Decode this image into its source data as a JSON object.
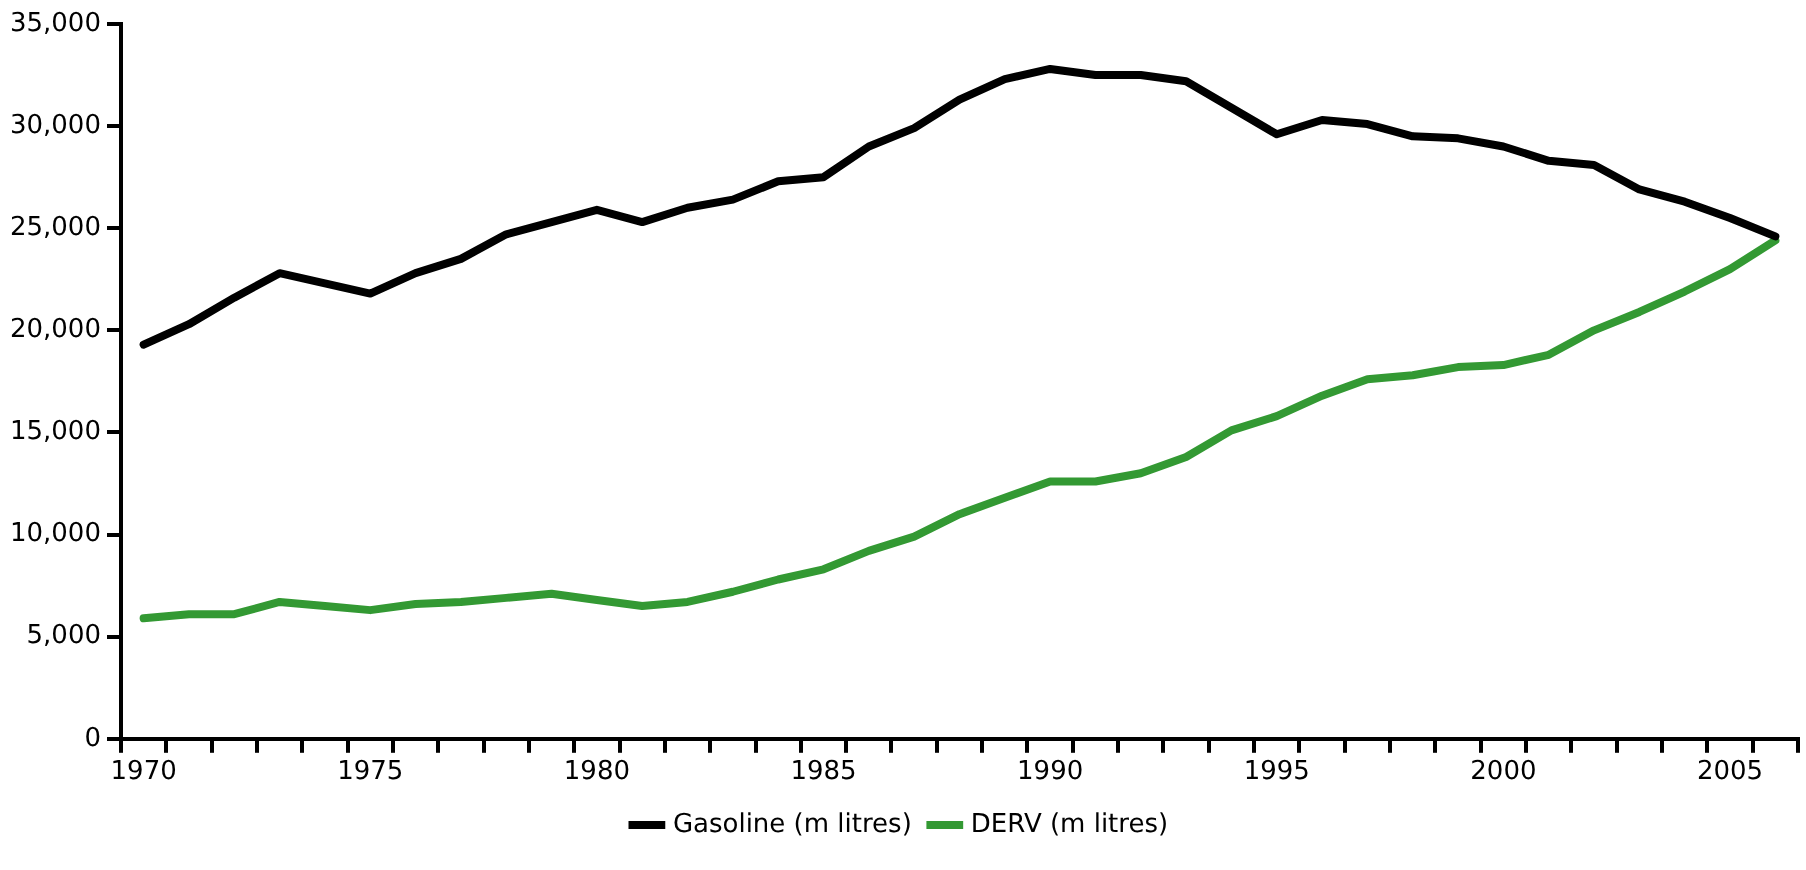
{
  "chart_data": {
    "type": "line",
    "categories": [
      "1970",
      null,
      null,
      null,
      null,
      "1975",
      null,
      null,
      null,
      null,
      "1980",
      null,
      null,
      null,
      null,
      "1985",
      null,
      null,
      null,
      null,
      "1990",
      null,
      null,
      null,
      null,
      "1995",
      null,
      null,
      null,
      null,
      "2000",
      null,
      null,
      null,
      null,
      "2005",
      null
    ],
    "series": [
      {
        "name": "Gasoline (m litres)",
        "color": "#000000",
        "values": [
          19300,
          20300,
          21600,
          22800,
          22300,
          21800,
          22800,
          23500,
          24700,
          25300,
          25900,
          25300,
          26000,
          26400,
          27300,
          27500,
          29000,
          29900,
          31300,
          32300,
          32800,
          32500,
          32500,
          32200,
          30900,
          29600,
          30300,
          30100,
          29500,
          29400,
          29000,
          28300,
          28100,
          26900,
          26300,
          25500,
          24600
        ]
      },
      {
        "name": "DERV (m litres)",
        "color": "#339933",
        "values": [
          5900,
          6100,
          6100,
          6700,
          6500,
          6300,
          6600,
          6700,
          6900,
          7100,
          6800,
          6500,
          6700,
          7200,
          7800,
          8300,
          9200,
          9900,
          11000,
          11800,
          12600,
          12600,
          13000,
          13800,
          15100,
          15800,
          16800,
          17600,
          17800,
          18200,
          18300,
          18800,
          20000,
          20900,
          21900,
          23000,
          24400
        ]
      }
    ],
    "ylim": [
      0,
      35000
    ],
    "yticks": [
      {
        "value": 0,
        "label": "0"
      },
      {
        "value": 5000,
        "label": "5,000"
      },
      {
        "value": 10000,
        "label": "10,000"
      },
      {
        "value": 15000,
        "label": "15,000"
      },
      {
        "value": 20000,
        "label": "20,000"
      },
      {
        "value": 25000,
        "label": "25,000"
      },
      {
        "value": 30000,
        "label": "30,000"
      },
      {
        "value": 35000,
        "label": "35,000"
      }
    ],
    "grid": false,
    "legend": "bottom",
    "marker": "none",
    "line_style": "solid"
  }
}
